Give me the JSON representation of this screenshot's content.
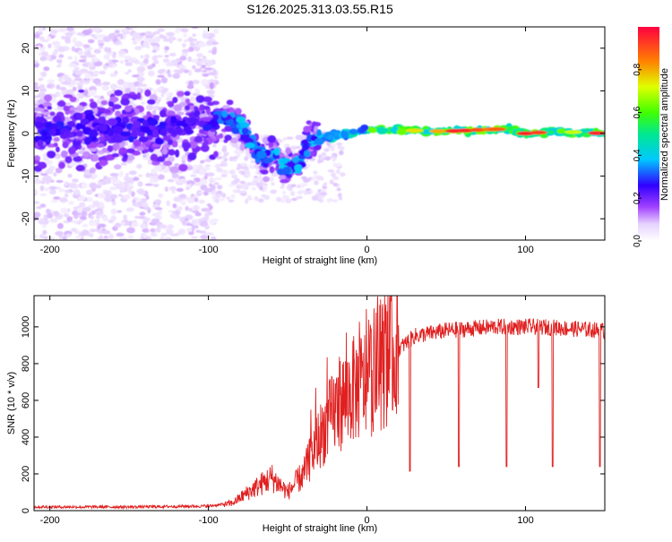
{
  "title": "S126.2025.313.03.55.R15",
  "colors": {
    "snr_line": "#e02020",
    "colormap": [
      "#ffffff",
      "#d9b8ff",
      "#7a00e6",
      "#3000ff",
      "#00c8ff",
      "#00ff60",
      "#c8ff00",
      "#ff8000",
      "#ff0040"
    ]
  },
  "chart_data": [
    {
      "type": "heatmap",
      "name": "spectrogram",
      "xlabel": "Height of straight line (km)",
      "ylabel": "Frequency (Hz)",
      "xlim": [
        -210,
        150
      ],
      "ylim": [
        -25,
        25
      ],
      "xticks": [
        -200,
        -100,
        0,
        100
      ],
      "yticks": [
        -20,
        -10,
        0,
        10,
        20
      ],
      "colorbar": {
        "label": "Normalized spectral amplitude",
        "range": [
          0,
          1
        ],
        "ticks": [
          "0.0",
          "0.2",
          "0.4",
          "0.6",
          "0.8"
        ]
      },
      "ridge": {
        "x": [
          -210,
          -180,
          -150,
          -120,
          -100,
          -90,
          -80,
          -70,
          -65,
          -60,
          -50,
          -42,
          -38,
          -30,
          -20,
          -10,
          0,
          20,
          50,
          80,
          90,
          100,
          120,
          150
        ],
        "freq": [
          1,
          1,
          1,
          1,
          2,
          4,
          2,
          -3,
          -6,
          -5,
          -8,
          -7,
          -2,
          -1,
          -0.5,
          0,
          1,
          0.8,
          0.5,
          1,
          1,
          0,
          0.5,
          0
        ]
      }
    },
    {
      "type": "line",
      "name": "snr",
      "xlabel": "Height of straight line (km)",
      "ylabel": "SNR (10 * v/v)",
      "xlim": [
        -210,
        150
      ],
      "ylim": [
        0,
        1170
      ],
      "xticks": [
        -200,
        -100,
        0,
        100
      ],
      "yticks": [
        0,
        200,
        400,
        600,
        800,
        1000
      ],
      "envelope": {
        "x": [
          -210,
          -150,
          -100,
          -85,
          -75,
          -60,
          -50,
          -40,
          -30,
          -20,
          -10,
          0,
          10,
          20,
          30,
          50,
          80,
          110,
          150
        ],
        "y": [
          20,
          20,
          25,
          40,
          100,
          180,
          100,
          200,
          400,
          550,
          650,
          700,
          800,
          880,
          950,
          980,
          1000,
          1000,
          980
        ]
      },
      "dropouts": [
        {
          "x": 27,
          "y": 215
        },
        {
          "x": 58,
          "y": 240
        },
        {
          "x": 88,
          "y": 240
        },
        {
          "x": 108,
          "y": 670
        },
        {
          "x": 117,
          "y": 240
        },
        {
          "x": 147,
          "y": 240
        }
      ]
    }
  ]
}
